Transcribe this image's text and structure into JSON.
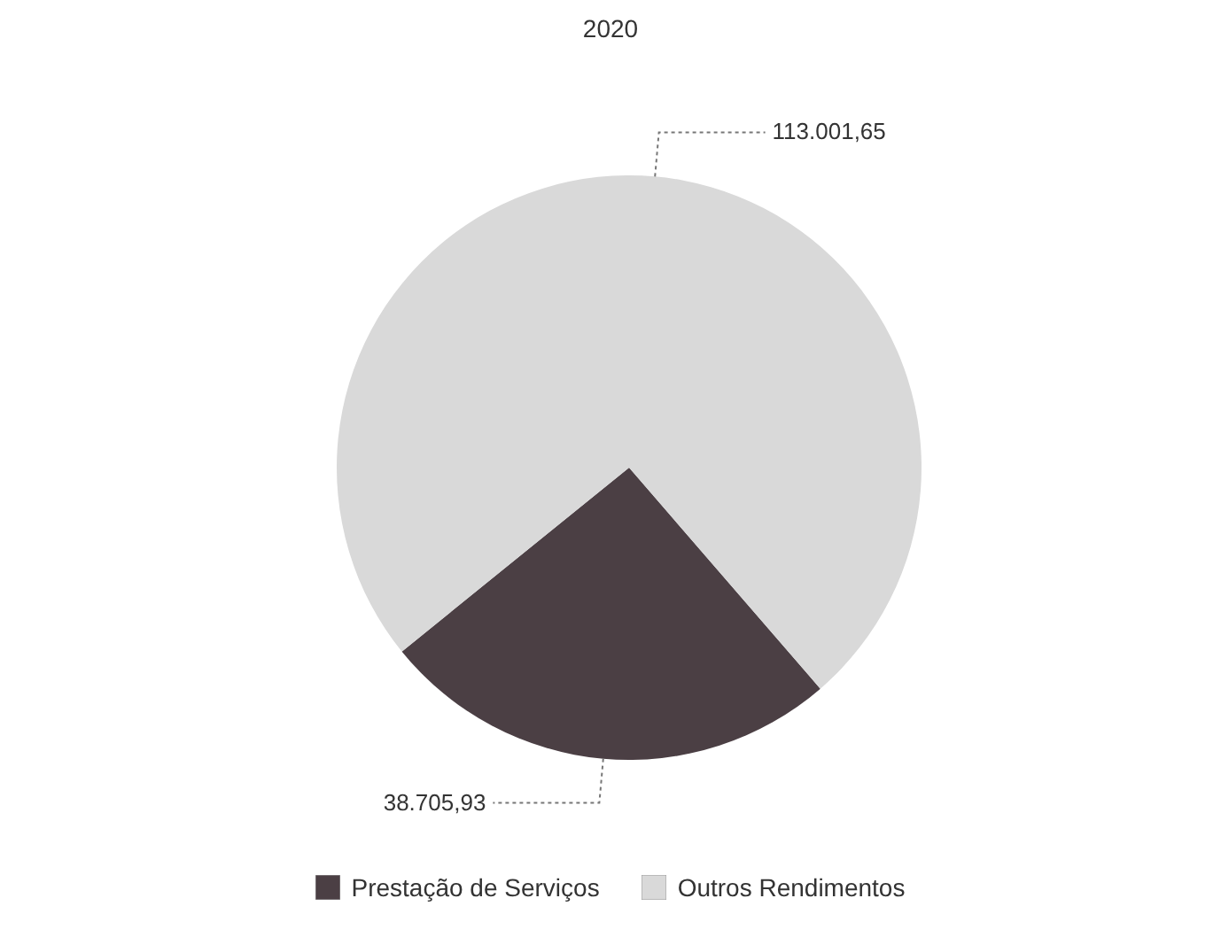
{
  "chart_data": {
    "type": "pie",
    "title": "2020",
    "categories": [
      "Prestação de Serviços",
      "Outros Rendimentos"
    ],
    "values": [
      38705.93,
      113001.65
    ],
    "colors": [
      "#4b3f44",
      "#d9d9d9"
    ],
    "value_labels": [
      "38.705,93",
      "113.001,65"
    ],
    "legend": "bottom"
  }
}
